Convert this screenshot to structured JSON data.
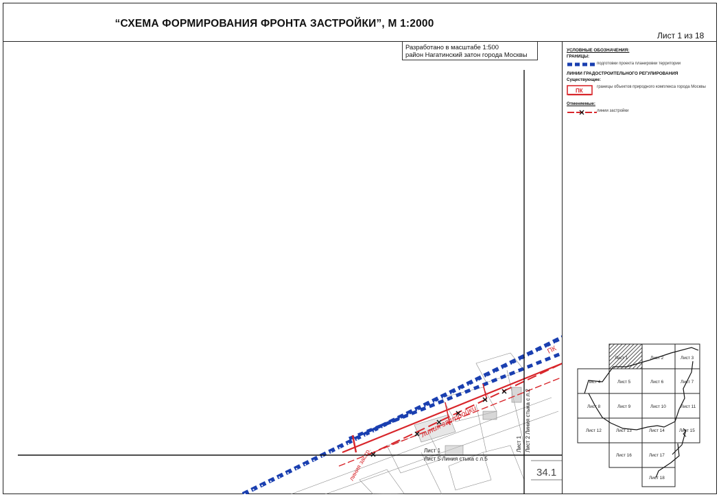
{
  "header": {
    "title": "“СХЕМА ФОРМИРОВАНИЯ ФРОНТА ЗАСТРОЙКИ”, М 1:2000",
    "sheet_number": "Лист 1 из 18"
  },
  "scale_note": {
    "line1": "Разработано в масштабе 1:500",
    "line2": "район Нагатинский затон города Москвы"
  },
  "legend": {
    "heading": "УСЛОВНЫЕ ОБОЗНАЧЕНИЯ:",
    "boundaries_heading": "ГРАНИЦЫ:",
    "boundary_item": "подготовки проекта планировки территории",
    "regulation_heading": "ЛИНИИ ГРАДОСТРОИТЕЛЬНОГО РЕГУЛИРОВАНИЯ",
    "existing_heading": "Существующие:",
    "existing_item": "границы объектов природного комплекса города Москвы",
    "existing_symbol_label": "ПК",
    "cancelled_heading": "Отменяемые:",
    "cancelled_item": "линии застройки"
  },
  "map_labels": {
    "pk_label": "ПК",
    "build_line_label": "линия застройки",
    "build_line_label_lower": "линия застр.",
    "vertical_join_sheet1": "Лист 1",
    "vertical_join_sheet2": "Лист 2 Линия стыка с л.2",
    "horizontal_join_sheet1": "Лист 1",
    "horizontal_join_sheet5": "Лист 5 Линия стыка с л.5",
    "block_number": "34.1"
  },
  "index_grid": {
    "rows": [
      [
        "Лист 1",
        "Лист 2",
        "Лист 3"
      ],
      [
        "Лист 4",
        "Лист 5",
        "Лист 6",
        "Лист 7"
      ],
      [
        "Лист 8",
        "Лист 9",
        "Лист 10",
        "Лист 11"
      ],
      [
        "Лист 12",
        "Лист 13",
        "Лист 14",
        "Лист 15"
      ],
      [
        "Лист 16",
        "Лист 17"
      ],
      [
        "Лист 18"
      ]
    ],
    "current": "Лист 1"
  },
  "colors": {
    "boundary_blue": "#1a3fb0",
    "regulation_red": "#d8262b",
    "frame": "#222222"
  }
}
